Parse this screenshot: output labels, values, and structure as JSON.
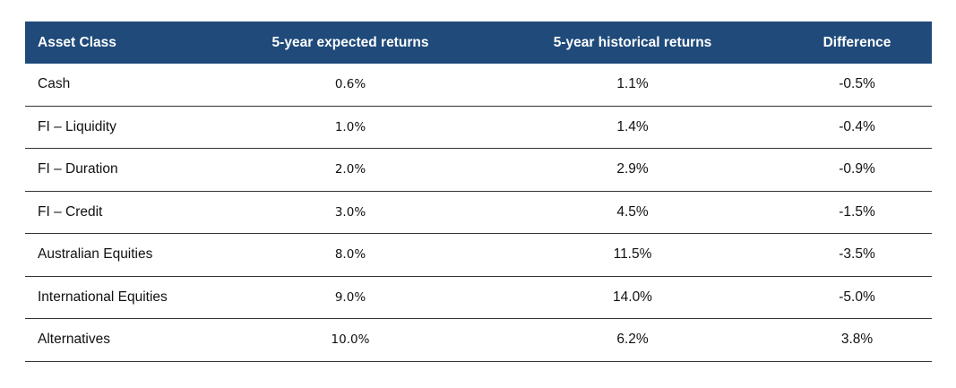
{
  "table": {
    "headers": [
      "Asset Class",
      "5-year expected returns",
      "5-year historical returns",
      "Difference"
    ],
    "header_bg": "#1f4a7a",
    "rows": [
      [
        "Cash",
        "0.6%",
        "1.1%",
        "-0.5%"
      ],
      [
        "FI – Liquidity",
        "1.0%",
        "1.4%",
        "-0.4%"
      ],
      [
        "FI – Duration",
        "2.0%",
        "2.9%",
        "-0.9%"
      ],
      [
        "FI – Credit",
        "3.0%",
        "4.5%",
        "-1.5%"
      ],
      [
        "Australian Equities",
        "8.0%",
        "11.5%",
        "-3.5%"
      ],
      [
        "International Equities",
        "9.0%",
        "14.0%",
        "-5.0%"
      ],
      [
        "Alternatives",
        "10.0%",
        "6.2%",
        "3.8%"
      ]
    ]
  }
}
